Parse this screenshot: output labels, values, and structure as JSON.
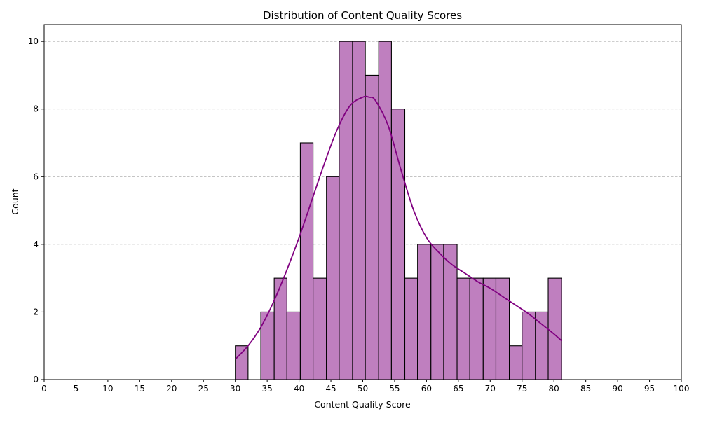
{
  "chart_data": {
    "type": "bar",
    "subtype": "histogram with KDE line",
    "title": "Distribution of Content Quality Scores",
    "xlabel": "Content Quality Score",
    "ylabel": "Count",
    "xlim": [
      0,
      100
    ],
    "ylim": [
      0,
      10.5
    ],
    "x_ticks": [
      0,
      5,
      10,
      15,
      20,
      25,
      30,
      35,
      40,
      45,
      50,
      55,
      60,
      65,
      70,
      75,
      80,
      85,
      90,
      95,
      100
    ],
    "y_ticks": [
      0,
      2,
      4,
      6,
      8,
      10
    ],
    "grid": "y-axis dashed",
    "bar_color": "#bf7fbf",
    "bar_edge_color": "#000000",
    "kde_color": "#800080",
    "bins": [
      {
        "start": 30.0,
        "end": 32.0,
        "count": 1
      },
      {
        "start": 32.0,
        "end": 34.0,
        "count": 0
      },
      {
        "start": 34.0,
        "end": 36.1,
        "count": 2
      },
      {
        "start": 36.1,
        "end": 38.1,
        "count": 3
      },
      {
        "start": 38.1,
        "end": 40.2,
        "count": 2
      },
      {
        "start": 40.2,
        "end": 42.2,
        "count": 7
      },
      {
        "start": 42.2,
        "end": 44.3,
        "count": 3
      },
      {
        "start": 44.3,
        "end": 46.3,
        "count": 6
      },
      {
        "start": 46.3,
        "end": 48.4,
        "count": 10
      },
      {
        "start": 48.4,
        "end": 50.4,
        "count": 10
      },
      {
        "start": 50.4,
        "end": 52.5,
        "count": 9
      },
      {
        "start": 52.5,
        "end": 54.5,
        "count": 10
      },
      {
        "start": 54.5,
        "end": 56.6,
        "count": 8
      },
      {
        "start": 56.6,
        "end": 58.6,
        "count": 3
      },
      {
        "start": 58.6,
        "end": 60.7,
        "count": 4
      },
      {
        "start": 60.7,
        "end": 62.7,
        "count": 4
      },
      {
        "start": 62.7,
        "end": 64.8,
        "count": 4
      },
      {
        "start": 64.8,
        "end": 66.8,
        "count": 3
      },
      {
        "start": 66.8,
        "end": 68.9,
        "count": 3
      },
      {
        "start": 68.9,
        "end": 70.9,
        "count": 3
      },
      {
        "start": 70.9,
        "end": 73.0,
        "count": 3
      },
      {
        "start": 73.0,
        "end": 75.0,
        "count": 1
      },
      {
        "start": 75.0,
        "end": 77.1,
        "count": 2
      },
      {
        "start": 77.1,
        "end": 79.1,
        "count": 2
      },
      {
        "start": 79.1,
        "end": 81.2,
        "count": 3
      }
    ],
    "kde": {
      "x": [
        30,
        32,
        34,
        36,
        38,
        40,
        42,
        44,
        46,
        48,
        50,
        51,
        52,
        54,
        56,
        58,
        60,
        62,
        64,
        66,
        68,
        70,
        72,
        74,
        76,
        78,
        80,
        81.2
      ],
      "y": [
        0.6,
        1.0,
        1.55,
        2.3,
        3.2,
        4.2,
        5.3,
        6.4,
        7.4,
        8.1,
        8.35,
        8.35,
        8.25,
        7.5,
        6.2,
        5.0,
        4.2,
        3.75,
        3.4,
        3.15,
        2.9,
        2.7,
        2.45,
        2.2,
        1.95,
        1.65,
        1.35,
        1.15
      ]
    }
  }
}
